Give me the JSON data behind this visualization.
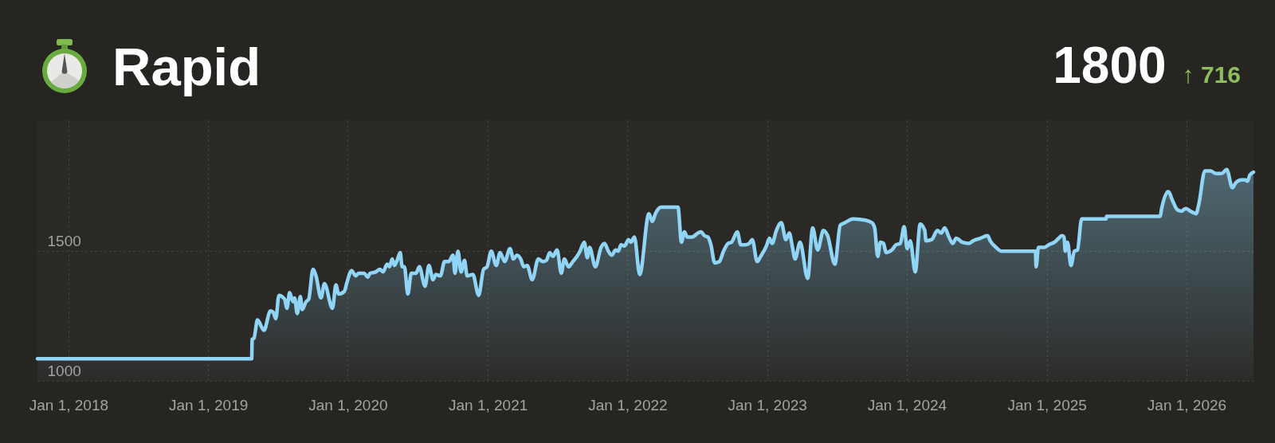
{
  "chart_data": {
    "type": "area",
    "title": "Rapid",
    "annotations": [
      "1800",
      "↑ 716"
    ],
    "x": [
      "2017-10-12",
      "2019-04-25",
      "2019-04-26",
      "2019-05-01",
      "2019-05-10",
      "2019-05-27",
      "2019-06-13",
      "2019-06-20",
      "2019-06-27",
      "2019-07-05",
      "2019-07-20",
      "2019-07-26",
      "2019-08-02",
      "2019-08-11",
      "2019-08-15",
      "2019-08-22",
      "2019-08-30",
      "2019-09-04",
      "2019-09-14",
      "2019-09-21",
      "2019-10-02",
      "2019-10-10",
      "2019-10-23",
      "2019-11-01",
      "2019-11-22",
      "2019-12-01",
      "2019-12-08",
      "2019-12-23",
      "2019-12-29",
      "2020-01-11",
      "2020-01-22",
      "2020-01-29",
      "2020-02-13",
      "2020-02-22",
      "2020-02-28",
      "2020-03-14",
      "2020-03-25",
      "2020-04-02",
      "2020-04-13",
      "2020-04-19",
      "2020-04-26",
      "2020-05-02",
      "2020-05-09",
      "2020-05-17",
      "2020-05-22",
      "2020-05-28",
      "2020-06-06",
      "2020-06-15",
      "2020-06-27",
      "2020-07-06",
      "2020-07-21",
      "2020-07-31",
      "2020-08-11",
      "2020-08-18",
      "2020-08-30",
      "2020-09-10",
      "2020-09-21",
      "2020-10-02",
      "2020-10-07",
      "2020-10-15",
      "2020-10-23",
      "2020-11-01",
      "2020-11-08",
      "2020-11-23",
      "2020-12-08",
      "2020-12-21",
      "2020-12-30",
      "2021-01-10",
      "2021-01-23",
      "2021-02-02",
      "2021-02-14",
      "2021-02-28",
      "2021-03-09",
      "2021-03-18",
      "2021-03-28",
      "2021-04-05",
      "2021-04-14",
      "2021-04-27",
      "2021-05-13",
      "2021-05-25",
      "2021-06-03",
      "2021-06-12",
      "2021-06-20",
      "2021-07-01",
      "2021-07-12",
      "2021-07-20",
      "2021-07-31",
      "2021-08-11",
      "2021-08-22",
      "2021-08-30",
      "2021-09-10",
      "2021-09-18",
      "2021-09-24",
      "2021-10-09",
      "2021-10-24",
      "2021-11-02",
      "2021-11-12",
      "2021-11-21",
      "2021-12-01",
      "2021-12-08",
      "2021-12-15",
      "2021-12-24",
      "2022-01-04",
      "2022-01-10",
      "2022-01-19",
      "2022-02-02",
      "2022-02-26",
      "2022-03-07",
      "2022-03-15",
      "2022-03-30",
      "2022-05-13",
      "2022-05-22",
      "2022-05-30",
      "2022-06-06",
      "2022-06-19",
      "2022-07-04",
      "2022-07-12",
      "2022-07-21",
      "2022-07-30",
      "2022-08-07",
      "2022-08-17",
      "2022-08-29",
      "2022-09-09",
      "2022-09-21",
      "2022-09-30",
      "2022-10-15",
      "2022-10-24",
      "2022-11-04",
      "2022-11-15",
      "2022-11-23",
      "2022-12-06",
      "2022-12-15",
      "2022-12-30",
      "2023-01-07",
      "2023-01-14",
      "2023-01-25",
      "2023-02-07",
      "2023-02-19",
      "2023-02-28",
      "2023-03-07",
      "2023-03-15",
      "2023-03-28",
      "2023-04-17",
      "2023-04-30",
      "2023-05-13",
      "2023-05-28",
      "2023-06-08",
      "2023-06-27",
      "2023-07-11",
      "2023-07-23",
      "2023-08-14",
      "2023-09-13",
      "2023-10-02",
      "2023-10-09",
      "2023-10-17",
      "2023-10-24",
      "2023-11-01",
      "2023-11-08",
      "2023-11-23",
      "2023-12-04",
      "2023-12-15",
      "2023-12-25",
      "2024-01-02",
      "2024-01-10",
      "2024-01-23",
      "2024-02-05",
      "2024-02-17",
      "2024-02-20",
      "2024-03-06",
      "2024-03-21",
      "2024-03-31",
      "2024-04-09",
      "2024-04-20",
      "2024-04-30",
      "2024-05-09",
      "2024-05-16",
      "2024-05-24",
      "2024-06-11",
      "2024-06-22",
      "2024-07-11",
      "2024-07-30",
      "2024-08-06",
      "2024-08-21",
      "2024-09-05",
      "2024-12-02",
      "2024-12-04",
      "2024-12-10",
      "2024-12-26",
      "2025-01-06",
      "2025-01-21",
      "2025-02-01",
      "2025-02-09",
      "2025-02-15",
      "2025-02-18",
      "2025-02-24",
      "2025-03-05",
      "2025-03-14",
      "2025-03-22",
      "2025-04-02",
      "2025-06-05",
      "2025-06-06",
      "2025-10-24",
      "2025-10-28",
      "2025-11-14",
      "2025-11-27",
      "2025-12-08",
      "2025-12-19",
      "2025-12-30",
      "2026-01-11",
      "2026-01-26",
      "2026-02-02",
      "2026-02-18",
      "2026-03-04",
      "2026-03-19",
      "2026-04-03",
      "2026-04-16",
      "2026-05-01",
      "2026-05-10",
      "2026-05-25",
      "2026-06-03",
      "2026-06-09",
      "2026-06-16",
      "2026-06-25"
    ],
    "values": [
      1085,
      1085,
      1160,
      1165,
      1235,
      1195,
      1270,
      1265,
      1240,
      1330,
      1315,
      1280,
      1340,
      1305,
      1320,
      1260,
      1325,
      1275,
      1305,
      1315,
      1430,
      1405,
      1320,
      1375,
      1280,
      1370,
      1335,
      1345,
      1375,
      1425,
      1405,
      1415,
      1415,
      1400,
      1415,
      1420,
      1430,
      1420,
      1450,
      1440,
      1470,
      1445,
      1465,
      1495,
      1440,
      1440,
      1335,
      1415,
      1415,
      1440,
      1365,
      1445,
      1390,
      1410,
      1405,
      1460,
      1460,
      1485,
      1415,
      1500,
      1420,
      1465,
      1405,
      1410,
      1330,
      1430,
      1440,
      1500,
      1445,
      1495,
      1460,
      1510,
      1470,
      1485,
      1470,
      1440,
      1445,
      1390,
      1470,
      1460,
      1465,
      1495,
      1480,
      1505,
      1415,
      1470,
      1440,
      1460,
      1480,
      1500,
      1535,
      1475,
      1515,
      1440,
      1515,
      1530,
      1500,
      1485,
      1505,
      1500,
      1525,
      1520,
      1545,
      1535,
      1555,
      1410,
      1645,
      1615,
      1645,
      1670,
      1670,
      1535,
      1575,
      1555,
      1555,
      1570,
      1575,
      1560,
      1555,
      1525,
      1455,
      1460,
      1500,
      1530,
      1535,
      1575,
      1525,
      1525,
      1530,
      1545,
      1460,
      1480,
      1520,
      1550,
      1530,
      1580,
      1610,
      1545,
      1570,
      1525,
      1470,
      1535,
      1395,
      1590,
      1505,
      1580,
      1560,
      1450,
      1600,
      1610,
      1625,
      1620,
      1610,
      1590,
      1480,
      1535,
      1530,
      1495,
      1505,
      1525,
      1530,
      1595,
      1510,
      1540,
      1420,
      1605,
      1580,
      1540,
      1545,
      1580,
      1570,
      1590,
      1555,
      1530,
      1550,
      1545,
      1535,
      1530,
      1540,
      1550,
      1560,
      1540,
      1515,
      1500,
      1500,
      1440,
      1515,
      1515,
      1525,
      1535,
      1550,
      1560,
      1555,
      1500,
      1535,
      1445,
      1500,
      1505,
      1625,
      1625,
      1635,
      1635,
      1665,
      1730,
      1690,
      1660,
      1655,
      1665,
      1655,
      1645,
      1680,
      1810,
      1810,
      1800,
      1800,
      1815,
      1745,
      1765,
      1775,
      1775,
      1770,
      1795,
      1805
    ],
    "color": "#90d5f6",
    "xlim": [
      "2017-10-12",
      "2026-06-25"
    ],
    "xticks": [
      {
        "value": "2018-01-01",
        "label": "Jan 1, 2018"
      },
      {
        "value": "2019-01-01",
        "label": "Jan 1, 2019"
      },
      {
        "value": "2020-01-01",
        "label": "Jan 1, 2020"
      },
      {
        "value": "2021-01-01",
        "label": "Jan 1, 2021"
      },
      {
        "value": "2022-01-01",
        "label": "Jan 1, 2022"
      },
      {
        "value": "2023-01-01",
        "label": "Jan 1, 2023"
      },
      {
        "value": "2024-01-01",
        "label": "Jan 1, 2024"
      },
      {
        "value": "2025-01-01",
        "label": "Jan 1, 2025"
      },
      {
        "value": "2026-01-01",
        "label": "Jan 1, 2026"
      }
    ],
    "ylim": [
      1000,
      2005
    ],
    "yticks": [
      1000,
      1500
    ],
    "grid": true
  }
}
